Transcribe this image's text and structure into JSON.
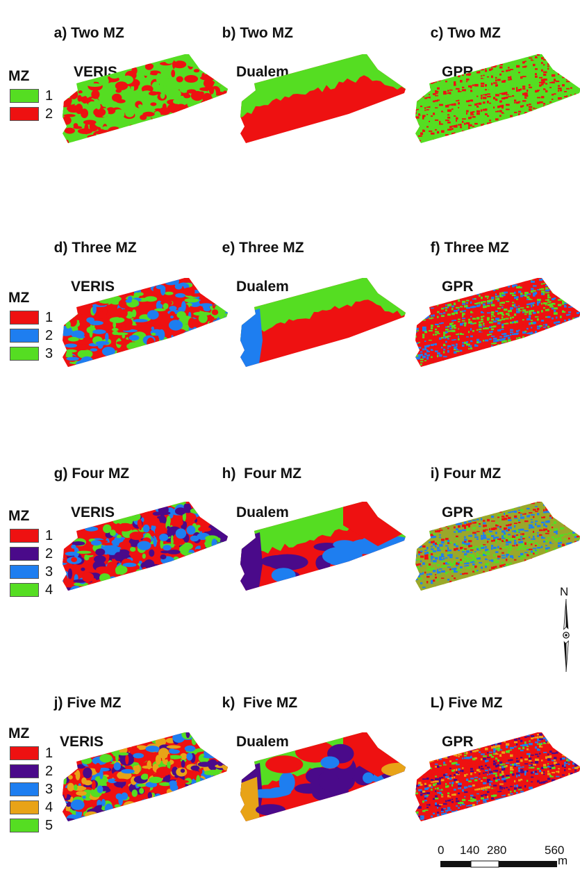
{
  "colors": {
    "red": "#ee1111",
    "green": "#55dd22",
    "blue": "#1e7ef0",
    "purple": "#4a0a8a",
    "orange": "#e8a317",
    "olive": "#9aa82a"
  },
  "rows": [
    {
      "legend": {
        "title": "MZ",
        "items": [
          {
            "label": "1",
            "color": "#55dd22"
          },
          {
            "label": "2",
            "color": "#ee1111"
          }
        ]
      },
      "panels": [
        {
          "line1": "a) Two MZ",
          "line2": "VERIS",
          "palette": [
            "#55dd22",
            "#ee1111"
          ],
          "style": "veris"
        },
        {
          "line1": "b) Two MZ",
          "line2": "Dualem",
          "palette": [
            "#55dd22",
            "#ee1111"
          ],
          "style": "dualem"
        },
        {
          "line1": "c) Two MZ",
          "line2": "GPR",
          "palette": [
            "#55dd22",
            "#ee1111"
          ],
          "style": "gpr"
        }
      ]
    },
    {
      "legend": {
        "title": "MZ",
        "items": [
          {
            "label": "1",
            "color": "#ee1111"
          },
          {
            "label": "2",
            "color": "#1e7ef0"
          },
          {
            "label": "3",
            "color": "#55dd22"
          }
        ]
      },
      "panels": [
        {
          "line1": "d) Three MZ",
          "line2": "VERIS",
          "palette": [
            "#ee1111",
            "#1e7ef0",
            "#55dd22"
          ],
          "style": "veris"
        },
        {
          "line1": "e) Three MZ",
          "line2": "Dualem",
          "palette": [
            "#ee1111",
            "#1e7ef0",
            "#55dd22"
          ],
          "style": "dualem"
        },
        {
          "line1": "f) Three MZ",
          "line2": "GPR",
          "palette": [
            "#ee1111",
            "#1e7ef0",
            "#55dd22"
          ],
          "style": "gpr"
        }
      ]
    },
    {
      "legend": {
        "title": "MZ",
        "items": [
          {
            "label": "1",
            "color": "#ee1111"
          },
          {
            "label": "2",
            "color": "#4a0a8a"
          },
          {
            "label": "3",
            "color": "#1e7ef0"
          },
          {
            "label": "4",
            "color": "#55dd22"
          }
        ]
      },
      "panels": [
        {
          "line1": "g) Four MZ",
          "line2": "VERIS",
          "palette": [
            "#ee1111",
            "#4a0a8a",
            "#1e7ef0",
            "#55dd22"
          ],
          "style": "veris"
        },
        {
          "line1": "h)  Four MZ",
          "line2": "Dualem",
          "palette": [
            "#ee1111",
            "#4a0a8a",
            "#1e7ef0",
            "#55dd22"
          ],
          "style": "dualem"
        },
        {
          "line1": "i) Four MZ",
          "line2": "GPR",
          "palette": [
            "#9aa82a",
            "#1e7ef0",
            "#55dd22",
            "#ee1111"
          ],
          "style": "gpr"
        }
      ]
    },
    {
      "legend": {
        "title": "MZ",
        "items": [
          {
            "label": "1",
            "color": "#ee1111"
          },
          {
            "label": "2",
            "color": "#4a0a8a"
          },
          {
            "label": "3",
            "color": "#1e7ef0"
          },
          {
            "label": "4",
            "color": "#e8a317"
          },
          {
            "label": "5",
            "color": "#55dd22"
          }
        ]
      },
      "panels": [
        {
          "line1": "j) Five MZ",
          "line2": "VERIS",
          "palette": [
            "#ee1111",
            "#4a0a8a",
            "#1e7ef0",
            "#e8a317",
            "#55dd22"
          ],
          "style": "veris"
        },
        {
          "line1": "k)  Five MZ",
          "line2": "Dualem",
          "palette": [
            "#ee1111",
            "#4a0a8a",
            "#1e7ef0",
            "#e8a317",
            "#55dd22"
          ],
          "style": "dualem"
        },
        {
          "line1": "L) Five MZ",
          "line2": "GPR",
          "palette": [
            "#ee1111",
            "#4a0a8a",
            "#1e7ef0",
            "#e8a317",
            "#55dd22"
          ],
          "style": "gpr"
        }
      ]
    }
  ],
  "north_arrow": {
    "label": "N"
  },
  "scale_bar": {
    "ticks": [
      "0",
      "140",
      "280",
      "560"
    ],
    "unit": "m"
  }
}
